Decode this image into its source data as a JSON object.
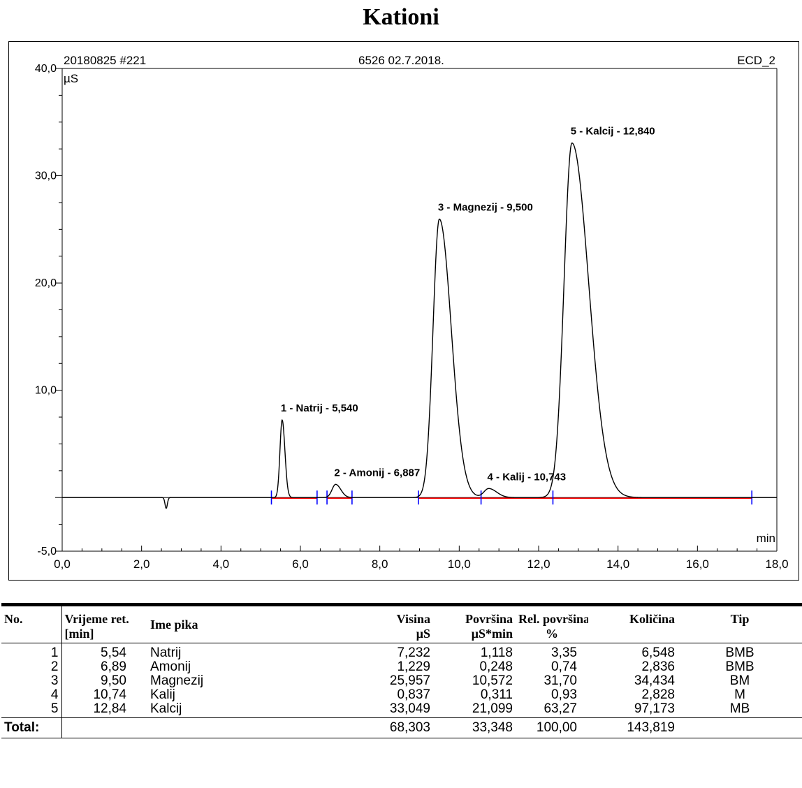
{
  "title": "Kationi",
  "chart_header": {
    "left": "20180825 #221",
    "center": "6526 02.7.2018.",
    "right": "ECD_2"
  },
  "chart_data": {
    "type": "line",
    "title": "",
    "ylabel": "µS",
    "xlabel": "min",
    "xlim": [
      0,
      18
    ],
    "ylim": [
      -5,
      40
    ],
    "x_ticks": [
      "0,0",
      "2,0",
      "4,0",
      "6,0",
      "8,0",
      "10,0",
      "12,0",
      "14,0",
      "16,0",
      "18,0"
    ],
    "x_tick_values": [
      0,
      2,
      4,
      6,
      8,
      10,
      12,
      14,
      16,
      18
    ],
    "y_ticks": [
      "-5,0",
      "10,0",
      "20,0",
      "30,0",
      "40,0"
    ],
    "y_tick_values": [
      -5,
      10,
      20,
      30,
      40
    ],
    "baseline": 0,
    "dip": {
      "time": 2.62,
      "depth": -1.0
    },
    "peaks": [
      {
        "label": "1 - Natrij - 5,540",
        "time": 5.54,
        "height": 7.232,
        "sigma_left": 0.055,
        "sigma_right": 0.07
      },
      {
        "label": "2 - Amonij - 6,887",
        "time": 6.887,
        "height": 1.229,
        "sigma_left": 0.09,
        "sigma_right": 0.13
      },
      {
        "label": "3 - Magnezij - 9,500",
        "time": 9.5,
        "height": 25.957,
        "sigma_left": 0.16,
        "sigma_right": 0.3
      },
      {
        "label": "4 - Kalij - 10,743",
        "time": 10.743,
        "height": 0.837,
        "sigma_left": 0.12,
        "sigma_right": 0.2
      },
      {
        "label": "5 - Kalcij - 12,840",
        "time": 12.84,
        "height": 33.049,
        "sigma_left": 0.2,
        "sigma_right": 0.42
      }
    ],
    "integration_markers": [
      5.27,
      6.42,
      6.67,
      7.3,
      8.97,
      10.55,
      12.36,
      17.37
    ],
    "integration_baselines": [
      [
        5.27,
        6.42
      ],
      [
        6.67,
        7.3
      ],
      [
        8.97,
        10.55
      ],
      [
        10.55,
        12.36
      ],
      [
        12.36,
        17.37
      ]
    ],
    "colors": {
      "trace": "#000000",
      "baseline": "#ff0000",
      "marker": "#0000ff"
    }
  },
  "table": {
    "headers": {
      "no": "No.",
      "rt": [
        "Vrijeme ret.",
        "[min]"
      ],
      "name": "Ime pika",
      "height": [
        "Visina",
        "µS"
      ],
      "area": [
        "Površina",
        "µS*min"
      ],
      "rel_area": [
        "Rel. površina",
        "%"
      ],
      "amount": "Količina",
      "type": "Tip"
    },
    "rows": [
      {
        "no": "1",
        "rt": "5,54",
        "name": "Natrij",
        "height": "7,232",
        "area": "1,118",
        "rel_area": "3,35",
        "amount": "6,548",
        "type": "BMB"
      },
      {
        "no": "2",
        "rt": "6,89",
        "name": "Amonij",
        "height": "1,229",
        "area": "0,248",
        "rel_area": "0,74",
        "amount": "2,836",
        "type": "BMB"
      },
      {
        "no": "3",
        "rt": "9,50",
        "name": "Magnezij",
        "height": "25,957",
        "area": "10,572",
        "rel_area": "31,70",
        "amount": "34,434",
        "type": "BM"
      },
      {
        "no": "4",
        "rt": "10,74",
        "name": "Kalij",
        "height": "0,837",
        "area": "0,311",
        "rel_area": "0,93",
        "amount": "2,828",
        "type": "M"
      },
      {
        "no": "5",
        "rt": "12,84",
        "name": "Kalcij",
        "height": "33,049",
        "area": "21,099",
        "rel_area": "63,27",
        "amount": "97,173",
        "type": "MB"
      }
    ],
    "total": {
      "label": "Total:",
      "height": "68,303",
      "area": "33,348",
      "rel_area": "100,00",
      "amount": "143,819"
    }
  }
}
